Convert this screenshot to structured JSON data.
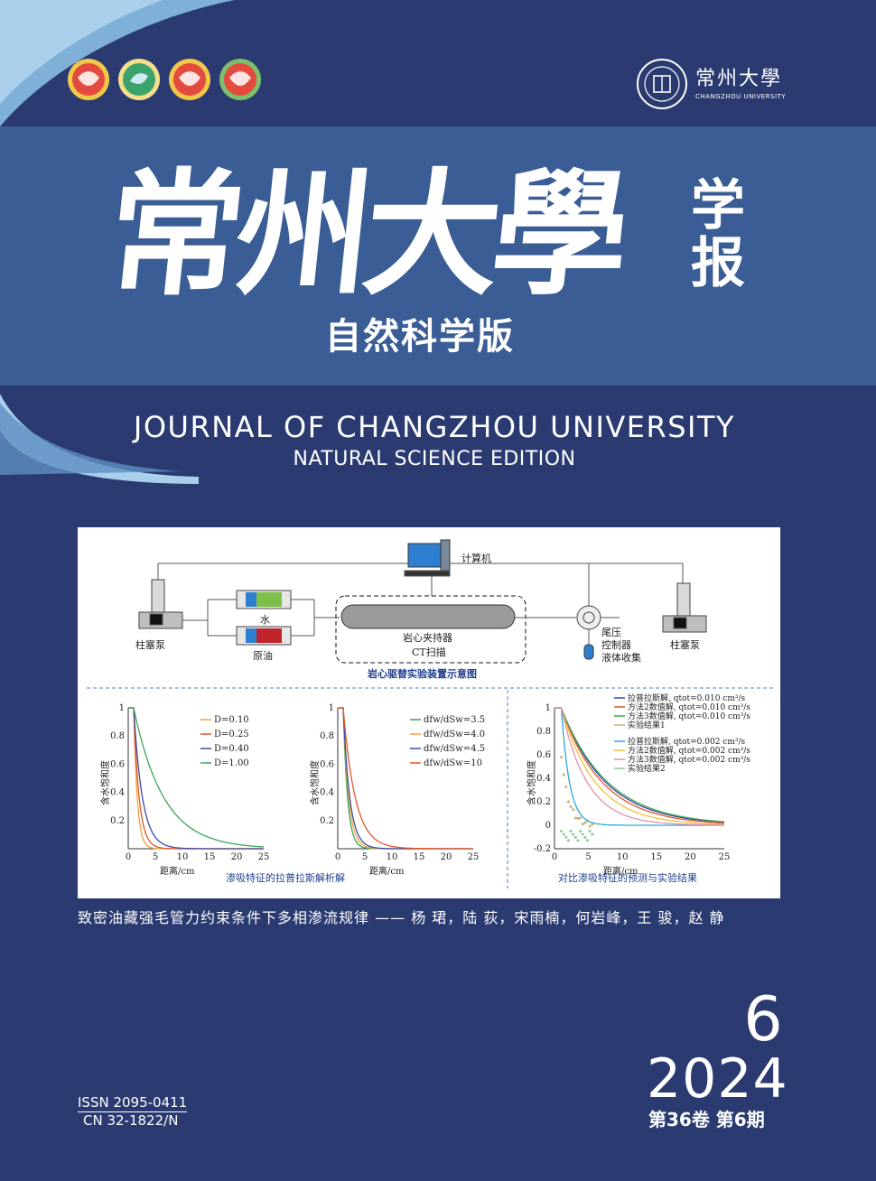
{
  "header": {
    "university_zh": "常州大學",
    "university_en": "CHANGZHOU UNIVERSITY"
  },
  "cover": {
    "title_main": "常州大學",
    "title_side_1": "学",
    "title_side_2": "报",
    "subtitle_zh": "自然科学版",
    "title_en": "JOURNAL OF CHANGZHOU UNIVERSITY",
    "subtitle_en": "NATURAL SCIENCE EDITION"
  },
  "figure": {
    "schematic": {
      "computer": "计算机",
      "pump_left": "柱塞泵",
      "water": "水",
      "oil": "原油",
      "core_holder": "岩心夹持器",
      "ct_scan": "CT扫描",
      "back_pressure_1": "尾压",
      "back_pressure_2": "控制器",
      "liquid_collect": "液体收集",
      "pump_right": "柱塞泵",
      "caption": "岩心驱替实验装置示意图"
    },
    "charts_caption_1": "渗吸特征的拉普拉斯解析解",
    "charts_caption_2": "对比渗吸特征的预测与实验结果",
    "ylabel": "含水饱和度",
    "xlabel": "距离/cm"
  },
  "chart_data": [
    {
      "type": "line",
      "ylabel": "含水饱和度",
      "xlabel": "距离/cm",
      "xlim": [
        0,
        25
      ],
      "ylim": [
        0,
        1.0
      ],
      "xticks": [
        0,
        5,
        10,
        15,
        20,
        25
      ],
      "yticks": [
        0.2,
        0.4,
        0.6,
        0.8,
        1.0
      ],
      "series": [
        {
          "name": "D=0.10",
          "color": "#f2a33a",
          "decay": 0.65
        },
        {
          "name": "D=0.25",
          "color": "#e0562b",
          "decay": 1.0
        },
        {
          "name": "D=0.40",
          "color": "#3b4aa8",
          "decay": 1.6
        },
        {
          "name": "D=1.00",
          "color": "#3aa655",
          "decay": 5.5
        }
      ]
    },
    {
      "type": "line",
      "ylabel": "含水饱和度",
      "xlabel": "距离/cm",
      "xlim": [
        0,
        25
      ],
      "ylim": [
        0,
        1.0
      ],
      "xticks": [
        0,
        5,
        10,
        15,
        20,
        25
      ],
      "yticks": [
        0.2,
        0.4,
        0.6,
        0.8,
        1.0
      ],
      "series": [
        {
          "name": "dfw/dSw=3.5",
          "color": "#3aa655",
          "decay": 0.8
        },
        {
          "name": "dfw/dSw=4.0",
          "color": "#f2a33a",
          "decay": 1.0
        },
        {
          "name": "dfw/dSw=4.5",
          "color": "#3b4aa8",
          "decay": 1.2
        },
        {
          "name": "dfw/dSw=10",
          "color": "#e0562b",
          "decay": 2.2
        }
      ]
    },
    {
      "type": "line",
      "ylabel": "含水饱和度",
      "xlabel": "距离/cm",
      "xlim": [
        0,
        25
      ],
      "ylim": [
        -0.2,
        1.0
      ],
      "xticks": [
        0,
        5,
        10,
        15,
        20,
        25
      ],
      "yticks": [
        -0.2,
        0,
        0.2,
        0.4,
        0.6,
        0.8,
        1.0
      ],
      "series": [
        {
          "name": "拉普拉斯解, qtot=0.010 cm³/s",
          "color": "#3b4aa8",
          "decay": 6.5
        },
        {
          "name": "方法2数值解, qtot=0.010 cm³/s",
          "color": "#e0562b",
          "decay": 6.0
        },
        {
          "name": "方法3数值解, qtot=0.010 cm³/s",
          "color": "#3aa655",
          "decay": 6.8
        },
        {
          "name": "实验结果1",
          "color": "#c9b07a",
          "decay": 0
        },
        {
          "name": "拉普拉斯解, qtot=0.002 cm³/s",
          "color": "#2aa9d8",
          "decay": 1.2
        },
        {
          "name": "方法2数值解, qtot=0.002 cm³/s",
          "color": "#f2c03a",
          "decay": 5.0
        },
        {
          "name": "方法3数值解, qtot=0.002 cm³/s",
          "color": "#e88fb0",
          "decay": 3.8
        },
        {
          "name": "实验结果2",
          "color": "#8fc98f",
          "decay": 0
        }
      ]
    }
  ],
  "article": {
    "title": "致密油藏强毛管力约束条件下多相渗流规律",
    "dash": "——",
    "authors": "杨 珺，陆 荻，宋雨楠，何岩峰，王 骏，赵 静"
  },
  "issue": {
    "number": "6",
    "year": "2024",
    "volume": "第36卷  第6期"
  },
  "ids": {
    "issn": "ISSN 2095-0411",
    "cn": "CN 32-1822/N"
  },
  "colors": {
    "background": "#2b3b71",
    "band": "#3a5d95",
    "accent": "#e36c5a"
  }
}
